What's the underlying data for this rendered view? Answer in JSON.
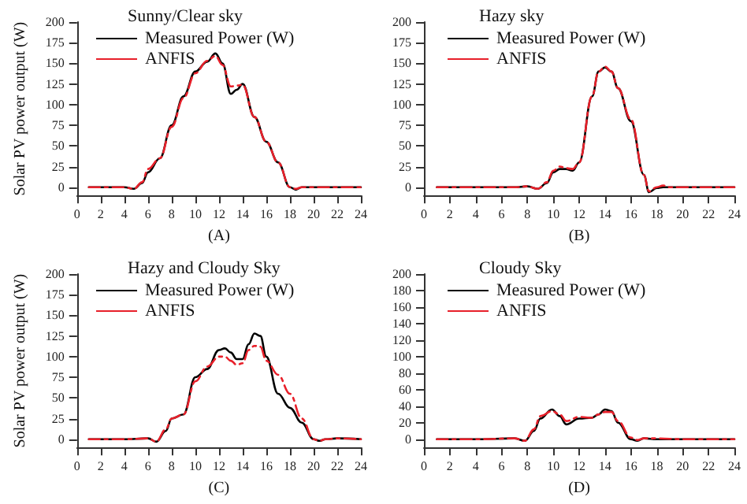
{
  "chart_data": [
    {
      "type": "line",
      "legend_title": "Sunny/Clear sky",
      "xlabel": "(A)",
      "ylabel": "Solar PV power output (W)",
      "legend": "top left",
      "marker": "none",
      "xlim": [
        0,
        24
      ],
      "xticks": [
        0,
        2,
        4,
        6,
        8,
        10,
        12,
        14,
        16,
        18,
        20,
        22,
        24
      ],
      "ylim": [
        -10,
        200
      ],
      "yticks": [
        0,
        25,
        50,
        75,
        100,
        125,
        150,
        175,
        200
      ],
      "x": [
        1,
        2,
        3,
        4,
        4.8,
        5.5,
        6,
        7,
        8,
        9,
        10,
        11,
        11.7,
        12.3,
        13,
        13.5,
        14,
        15,
        16,
        17,
        18,
        18.5,
        19,
        20,
        21,
        22,
        23,
        24
      ],
      "series": [
        {
          "name": "Measured Power (W)",
          "color": "#000000",
          "line_style": "solid",
          "values": [
            0,
            0,
            0,
            0,
            -2,
            5,
            18,
            35,
            75,
            110,
            140,
            152,
            162,
            150,
            113,
            118,
            125,
            85,
            55,
            30,
            0,
            -3,
            0,
            0,
            0,
            0,
            0,
            0
          ]
        },
        {
          "name": "ANFIS",
          "color": "#e8202a",
          "line_style": "dashed",
          "values": [
            0,
            0,
            0,
            0,
            -2,
            6,
            22,
            35,
            73,
            108,
            138,
            153,
            159,
            148,
            122,
            123,
            124,
            85,
            55,
            30,
            0,
            -2,
            0,
            0,
            0,
            0,
            0,
            0
          ]
        }
      ]
    },
    {
      "type": "line",
      "legend_title": "Hazy sky",
      "xlabel": "(B)",
      "legend": "top left",
      "marker": "none",
      "xlim": [
        0,
        24
      ],
      "xticks": [
        0,
        2,
        4,
        6,
        8,
        10,
        12,
        14,
        16,
        18,
        20,
        22,
        24
      ],
      "ylim": [
        -10,
        200
      ],
      "yticks": [
        0,
        25,
        50,
        75,
        100,
        125,
        150,
        175,
        200
      ],
      "x": [
        1,
        4,
        7,
        8,
        8.8,
        9.5,
        10,
        10.5,
        11,
        11.5,
        12,
        13,
        13.5,
        14,
        14.5,
        15,
        16,
        17,
        17.4,
        18,
        18.5,
        19,
        20,
        22,
        24
      ],
      "series": [
        {
          "name": "Measured Power (W)",
          "color": "#000000",
          "line_style": "solid",
          "values": [
            0,
            0,
            0,
            1,
            -2,
            5,
            18,
            22,
            22,
            20,
            30,
            110,
            140,
            145,
            140,
            120,
            80,
            15,
            -6,
            -1,
            0,
            0,
            0,
            0,
            0
          ]
        },
        {
          "name": "ANFIS",
          "color": "#e8202a",
          "line_style": "dashed",
          "values": [
            0,
            0,
            0,
            1,
            -2,
            6,
            20,
            25,
            23,
            22,
            30,
            110,
            140,
            146,
            140,
            120,
            82,
            15,
            -5,
            0,
            2,
            0,
            0,
            0,
            0
          ]
        }
      ]
    },
    {
      "type": "line",
      "legend_title": "Hazy and Cloudy Sky",
      "xlabel": "(C)",
      "ylabel": "Solar PV power output (W)",
      "legend": "top left",
      "marker": "none",
      "xlim": [
        0,
        24
      ],
      "xticks": [
        0,
        2,
        4,
        6,
        8,
        10,
        12,
        14,
        16,
        18,
        20,
        22,
        24
      ],
      "ylim": [
        -10,
        200
      ],
      "yticks": [
        0,
        25,
        50,
        75,
        100,
        125,
        150,
        175,
        200
      ],
      "x": [
        1,
        4,
        6,
        6.7,
        7.5,
        8,
        9,
        10,
        11,
        12,
        12.5,
        13,
        13.5,
        14,
        14.5,
        15,
        15.5,
        16,
        17,
        18,
        19,
        20,
        20.5,
        21,
        22,
        24
      ],
      "series": [
        {
          "name": "Measured Power (W)",
          "color": "#000000",
          "line_style": "solid",
          "values": [
            0,
            0,
            1,
            -3,
            10,
            25,
            30,
            75,
            85,
            108,
            110,
            105,
            97,
            97,
            115,
            128,
            125,
            100,
            55,
            38,
            20,
            0,
            -2,
            0,
            1,
            0
          ]
        },
        {
          "name": "ANFIS",
          "color": "#e8202a",
          "line_style": "dashed",
          "values": [
            0,
            0,
            1,
            -3,
            12,
            25,
            30,
            70,
            88,
            100,
            100,
            95,
            90,
            92,
            108,
            113,
            112,
            95,
            78,
            55,
            25,
            0,
            -2,
            0,
            1,
            0
          ]
        }
      ]
    },
    {
      "type": "line",
      "legend_title": "Cloudy Sky",
      "xlabel": "(D)",
      "legend": "top left",
      "marker": "none",
      "xlim": [
        0,
        24
      ],
      "xticks": [
        0,
        2,
        4,
        6,
        8,
        10,
        12,
        14,
        16,
        18,
        20,
        22,
        24
      ],
      "ylim": [
        -10,
        200
      ],
      "yticks": [
        0,
        20,
        40,
        60,
        80,
        100,
        120,
        140,
        160,
        180,
        200
      ],
      "x": [
        1,
        4,
        7,
        7.8,
        8.5,
        9,
        9.9,
        10.5,
        11,
        12,
        13,
        13.5,
        14,
        14.5,
        15,
        16,
        16.5,
        17,
        18,
        20,
        24
      ],
      "series": [
        {
          "name": "Measured Power (W)",
          "color": "#000000",
          "line_style": "solid",
          "values": [
            0,
            0,
            1,
            -2,
            10,
            25,
            36,
            28,
            18,
            25,
            26,
            30,
            36,
            34,
            20,
            0,
            -2,
            1,
            0,
            0,
            0
          ]
        },
        {
          "name": "ANFIS",
          "color": "#e8202a",
          "line_style": "dashed",
          "values": [
            0,
            0,
            1,
            -2,
            12,
            28,
            34,
            30,
            22,
            27,
            26,
            30,
            33,
            33,
            22,
            2,
            -1,
            1,
            1,
            0,
            0
          ]
        }
      ]
    }
  ]
}
